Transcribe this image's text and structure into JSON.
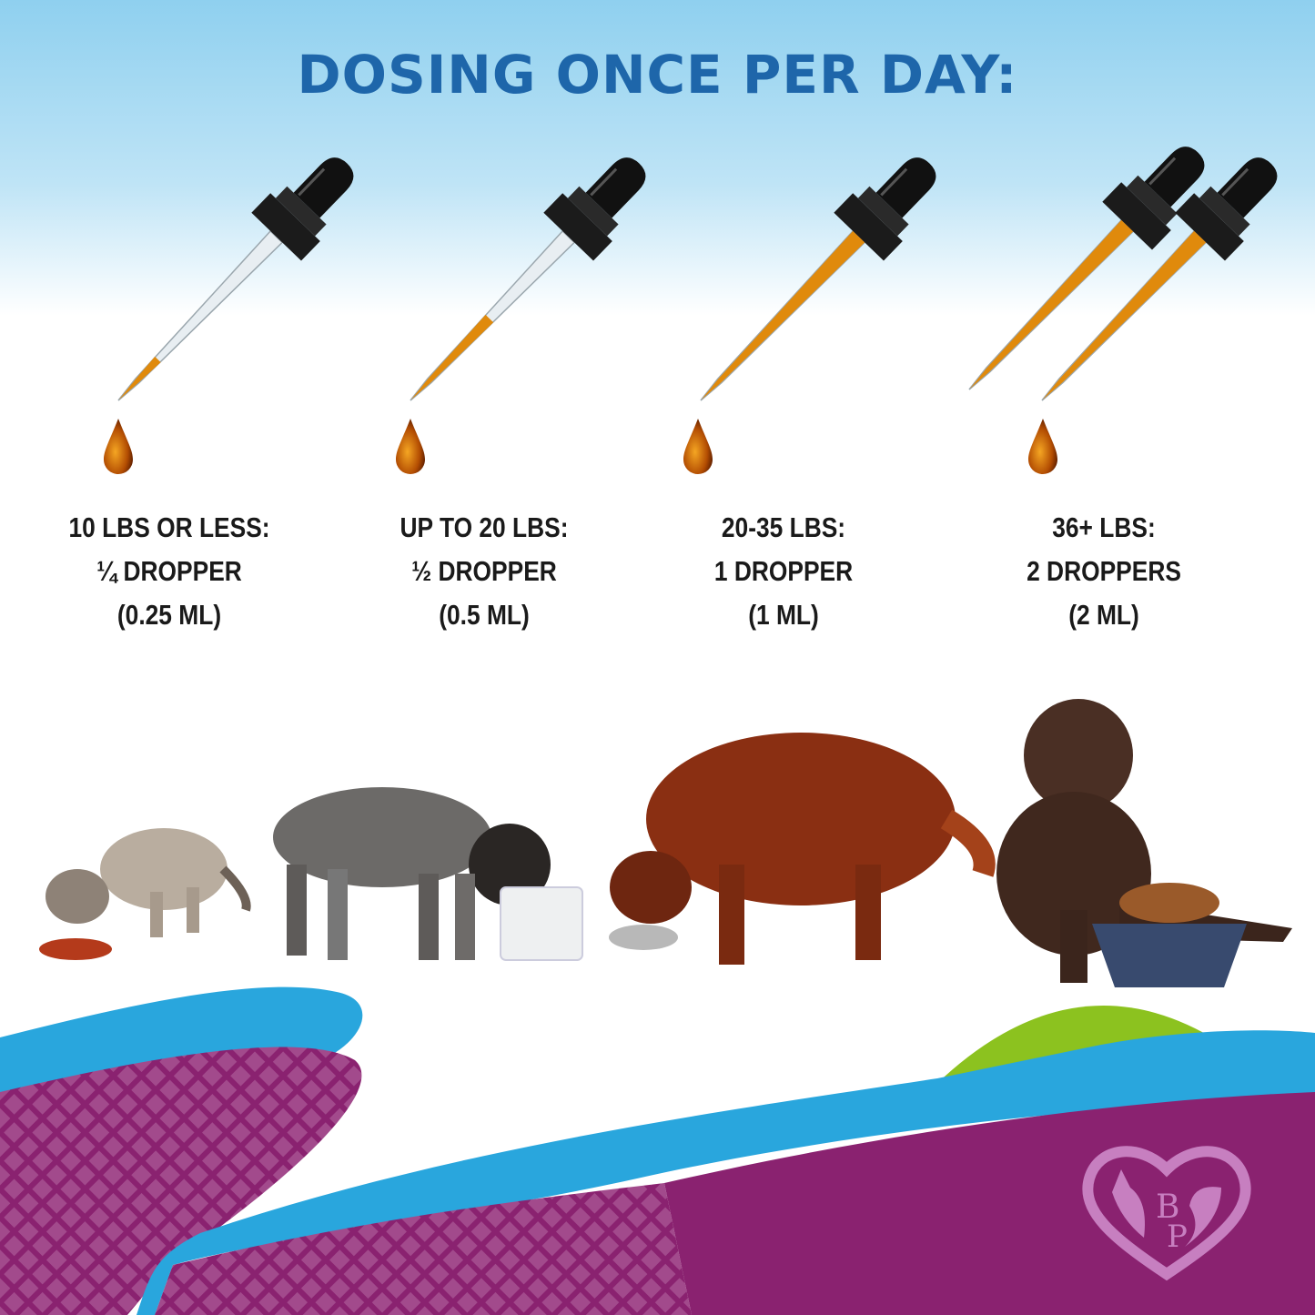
{
  "title": "DOSING ONCE PER DAY:",
  "doses": [
    {
      "weight": "10 LBS OR LESS:",
      "amount": "¼ DROPPER",
      "volume": "(0.25 ML)",
      "fill_fraction": 0.25,
      "dropper_count": 1
    },
    {
      "weight": "UP TO 20 LBS:",
      "amount": "½ DROPPER",
      "volume": "(0.5 ML)",
      "fill_fraction": 0.5,
      "dropper_count": 1
    },
    {
      "weight": "20-35 LBS:",
      "amount": "1 DROPPER",
      "volume": "(1 ML)",
      "fill_fraction": 1,
      "dropper_count": 1
    },
    {
      "weight": "36+ LBS:",
      "amount": "2 DROPPERS",
      "volume": "(2 ML)",
      "fill_fraction": 1,
      "dropper_count": 2
    }
  ],
  "logo": {
    "text": "BP",
    "icon": "heart-cat-dog-logo"
  },
  "colors": {
    "title": "#1e66aa",
    "oil": "#e08a0c",
    "blue": "#29a6dd",
    "purple": "#8a2270",
    "green": "#8cc21f"
  }
}
